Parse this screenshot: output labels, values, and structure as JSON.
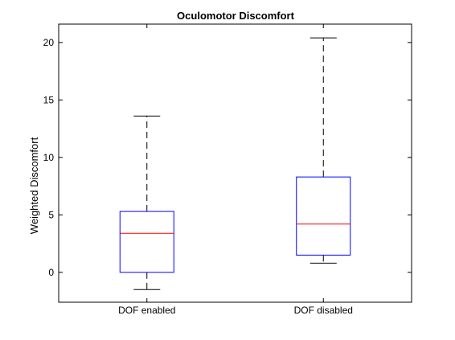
{
  "chart_data": {
    "type": "boxplot",
    "title": "Oculomotor Discomfort",
    "xlabel": "",
    "ylabel": "Weighted Discomfort",
    "ylim": [
      -2.6,
      21.6
    ],
    "yticks": [
      0,
      5,
      10,
      15,
      20
    ],
    "ytick_labels": [
      "0",
      "5",
      "10",
      "15",
      "20"
    ],
    "grid": false,
    "box_color": "#0000ff",
    "median_color": "#ff0000",
    "whisker_color": "#000000",
    "groups": [
      {
        "label": "DOF enabled",
        "lower_whisker": -1.5,
        "q1": 0.0,
        "median": 3.4,
        "q3": 5.3,
        "upper_whisker": 13.6
      },
      {
        "label": "DOF disabled",
        "lower_whisker": 0.8,
        "q1": 1.5,
        "median": 4.2,
        "q3": 8.3,
        "upper_whisker": 20.4
      }
    ]
  }
}
